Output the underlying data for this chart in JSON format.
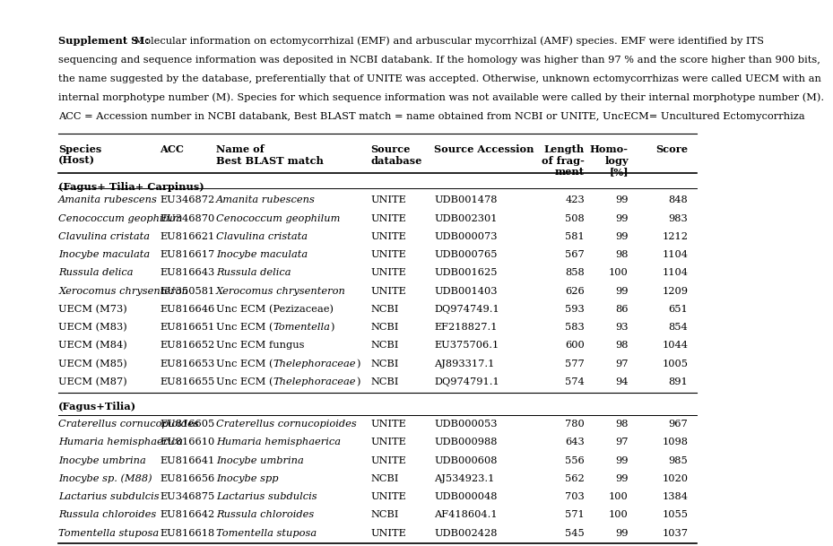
{
  "caption_bold": "Supplement S1:",
  "caption_lines": [
    " Molecular information on ectomycorrhizal (EMF) and arbuscular mycorrhizal (AMF) species. EMF were identified by ITS",
    "sequencing and sequence information was deposited in NCBI databank. If the homology was higher than 97 % and the score higher than 900 bits,",
    "the name suggested by the database, preferentially that of UNITE was accepted. Otherwise, unknown ectomycorrhizas were called UECM with an",
    "internal morphotype number (M). Species for which sequence information was not available were called by their internal morphotype number (M).",
    "ACC = Accession number in NCBI databank, Best BLAST match = name obtained from NCBI or UNITE, UncECM= Uncultured Ectomycorrhiza"
  ],
  "headers": [
    "Species\n(Host)",
    "ACC",
    "Name of\nBest BLAST match",
    "Source\ndatabase",
    "Source Accession",
    "Length\nof frag-\nment",
    "Homo-\nlogy\n[%]",
    "Score"
  ],
  "group1_label": "(Fagus+ Tilia+ Carpinus)",
  "group1_rows": [
    [
      "Amanita rubescens",
      "EU346872",
      "Amanita rubescens",
      "UNITE",
      "UDB001478",
      "423",
      "99",
      "848"
    ],
    [
      "Cenococcum geophilum",
      "EU346870",
      "Cenococcum geophilum",
      "UNITE",
      "UDB002301",
      "508",
      "99",
      "983"
    ],
    [
      "Clavulina cristata",
      "EU816621",
      "Clavulina cristata",
      "UNITE",
      "UDB000073",
      "581",
      "99",
      "1212"
    ],
    [
      "Inocybe maculata",
      "EU816617",
      "Inocybe maculata",
      "UNITE",
      "UDB000765",
      "567",
      "98",
      "1104"
    ],
    [
      "Russula delica",
      "EU816643",
      "Russula delica",
      "UNITE",
      "UDB001625",
      "858",
      "100",
      "1104"
    ],
    [
      "Xerocomus chrysenteron",
      "EU350581",
      "Xerocomus chrysenteron",
      "UNITE",
      "UDB001403",
      "626",
      "99",
      "1209"
    ],
    [
      "UECM (M73)",
      "EU816646",
      "Unc ECM (Pezizaceae)",
      "NCBI",
      "DQ974749.1",
      "593",
      "86",
      "651"
    ],
    [
      "UECM (M83)",
      "EU816651",
      "Unc ECM (Tomentella)",
      "NCBI",
      "EF218827.1",
      "583",
      "93",
      "854"
    ],
    [
      "UECM (M84)",
      "EU816652",
      "Unc ECM fungus",
      "NCBI",
      "EU375706.1",
      "600",
      "98",
      "1044"
    ],
    [
      "UECM (M85)",
      "EU816653",
      "Unc ECM (Thelephoraceae)",
      "NCBI",
      "AJ893317.1",
      "577",
      "97",
      "1005"
    ],
    [
      "UECM (M87)",
      "EU816655",
      "Unc ECM (Thelephoraceae)",
      "NCBI",
      "DQ974791.1",
      "574",
      "94",
      "891"
    ]
  ],
  "group1_italic_sp": [
    0,
    1,
    2,
    3,
    4,
    5
  ],
  "group1_italic_name": [
    0,
    1,
    2,
    3,
    4,
    5
  ],
  "group1_mixed_name": {
    "7": [
      [
        "Unc ECM (",
        false
      ],
      [
        "Tomentella",
        true
      ],
      [
        ")",
        false
      ]
    ],
    "9": [
      [
        "Unc ECM (",
        false
      ],
      [
        "Thelephoraceae",
        true
      ],
      [
        ")",
        false
      ]
    ],
    "10": [
      [
        "Unc ECM (",
        false
      ],
      [
        "Thelephoraceae",
        true
      ],
      [
        ")",
        false
      ]
    ]
  },
  "group2_label": "(Fagus+Tilia)",
  "group2_rows": [
    [
      "Craterellus cornucopioides",
      "EU816605",
      "Craterellus cornucopioides",
      "UNITE",
      "UDB000053",
      "780",
      "98",
      "967"
    ],
    [
      "Humaria hemisphaerica",
      "EU816610",
      "Humaria hemisphaerica",
      "UNITE",
      "UDB000988",
      "643",
      "97",
      "1098"
    ],
    [
      "Inocybe umbrina",
      "EU816641",
      "Inocybe umbrina",
      "UNITE",
      "UDB000608",
      "556",
      "99",
      "985"
    ],
    [
      "Inocybe sp. (M88)",
      "EU816656",
      "Inocybe spp",
      "NCBI",
      "AJ534923.1",
      "562",
      "99",
      "1020"
    ],
    [
      "Lactarius subdulcis",
      "EU346875",
      "Lactarius subdulcis",
      "UNITE",
      "UDB000048",
      "703",
      "100",
      "1384"
    ],
    [
      "Russula chloroides",
      "EU816642",
      "Russula chloroides",
      "NCBI",
      "AF418604.1",
      "571",
      "100",
      "1055"
    ],
    [
      "Tomentella stuposa",
      "EU816618",
      "Tomentella stuposa",
      "UNITE",
      "UDB002428",
      "545",
      "99",
      "1037"
    ]
  ],
  "group2_italic_sp": [
    0,
    1,
    2,
    3,
    4,
    5,
    6
  ],
  "group2_italic_name": [
    0,
    1,
    2,
    3,
    4,
    5,
    6
  ],
  "bg_color": "#ffffff",
  "text_color": "#000000",
  "font_size": 8.2,
  "header_font_size": 8.2,
  "caption_font_size": 8.2
}
